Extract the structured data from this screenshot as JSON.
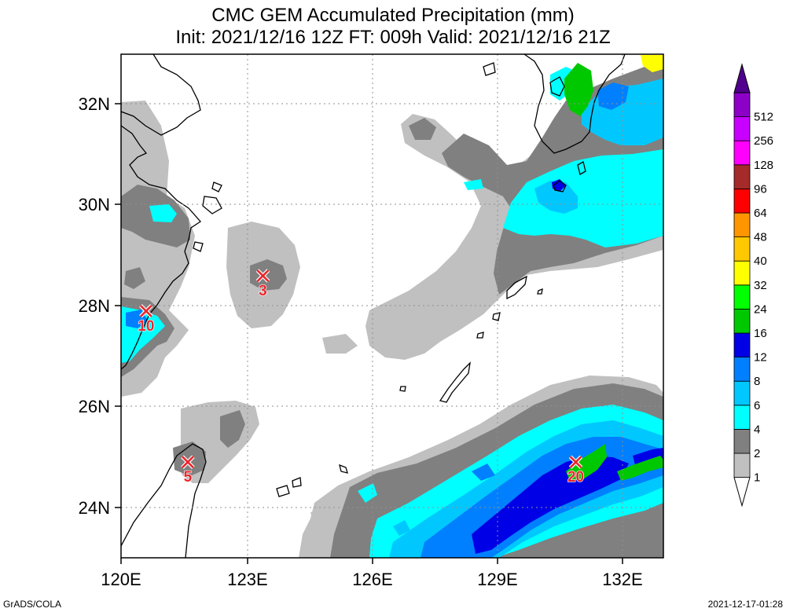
{
  "title": {
    "line1": "CMC GEM Accumulated Precipitation (mm)",
    "line2": "Init: 2021/12/16 12Z  FT: 009h  Valid: 2021/12/16 21Z"
  },
  "axes": {
    "x_ticks": [
      "120E",
      "123E",
      "126E",
      "129E",
      "132E"
    ],
    "y_ticks": [
      "32N",
      "30N",
      "28N",
      "26N",
      "24N"
    ],
    "lon_range": [
      120,
      133
    ],
    "lat_range": [
      23,
      33
    ]
  },
  "colorbar": {
    "levels": [
      "1",
      "2",
      "4",
      "6",
      "8",
      "12",
      "16",
      "24",
      "32",
      "40",
      "48",
      "64",
      "96",
      "128",
      "256",
      "512"
    ],
    "colors": [
      "#c0c0c0",
      "#808080",
      "#00ffff",
      "#00c8ff",
      "#0080ff",
      "#0000e6",
      "#00c800",
      "#00ff00",
      "#ffff00",
      "#ffc800",
      "#ff9600",
      "#ff0000",
      "#a52a2a",
      "#ff00ff",
      "#c800ff",
      "#8c00c8",
      "#50008c"
    ]
  },
  "markers": [
    {
      "value": "10",
      "lon": 120.6,
      "lat": 27.9
    },
    {
      "value": "3",
      "lon": 123.4,
      "lat": 28.6
    },
    {
      "value": "5",
      "lon": 121.6,
      "lat": 24.9
    },
    {
      "value": "20",
      "lon": 130.9,
      "lat": 24.9
    }
  ],
  "footer": {
    "left": "GrADS/COLA",
    "right": "2021-12-17-01:28"
  }
}
